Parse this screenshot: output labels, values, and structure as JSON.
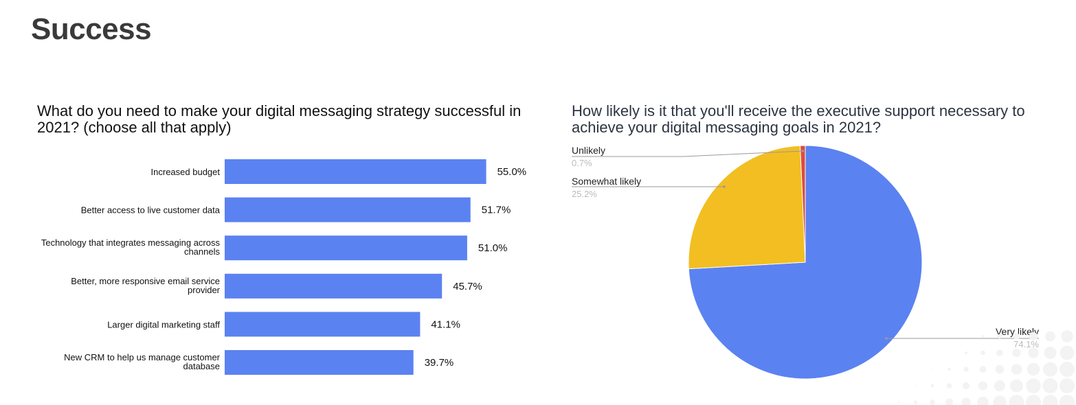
{
  "page": {
    "title": "Success"
  },
  "colors": {
    "bar": "#5b82f1",
    "very_likely": "#5b82f1",
    "somewhat_likely": "#f2be22",
    "unlikely": "#e04a3a"
  },
  "chart_data": [
    {
      "type": "bar",
      "orientation": "horizontal",
      "title": "What do you need to make your digital messaging strategy successful in 2021? (choose all that apply)",
      "categories": [
        [
          "Increased budget"
        ],
        [
          "Better access to live customer data"
        ],
        [
          "Technology that integrates messaging across",
          "channels"
        ],
        [
          "Better, more responsive email service",
          "provider"
        ],
        [
          "Larger digital marketing staff"
        ],
        [
          "New CRM to help us manage customer",
          "database"
        ]
      ],
      "values": [
        55.0,
        51.7,
        51.0,
        45.7,
        41.1,
        39.7
      ],
      "value_labels": [
        "55.0%",
        "51.7%",
        "51.0%",
        "45.7%",
        "41.1%",
        "39.7%"
      ],
      "xlim": [
        0,
        60
      ],
      "grid": false,
      "legend": "none"
    },
    {
      "type": "pie",
      "title": "How likely is it that you'll receive the executive support necessary to achieve your digital messaging goals in 2021?",
      "slices": [
        {
          "label": "Very likely",
          "value": 74.1,
          "value_label": "74.1%",
          "color": "#5b82f1"
        },
        {
          "label": "Somewhat likely",
          "value": 25.2,
          "value_label": "25.2%",
          "color": "#f2be22"
        },
        {
          "label": "Unlikely",
          "value": 0.7,
          "value_label": "0.7%",
          "color": "#e04a3a"
        }
      ],
      "legend": "callout labels"
    }
  ]
}
